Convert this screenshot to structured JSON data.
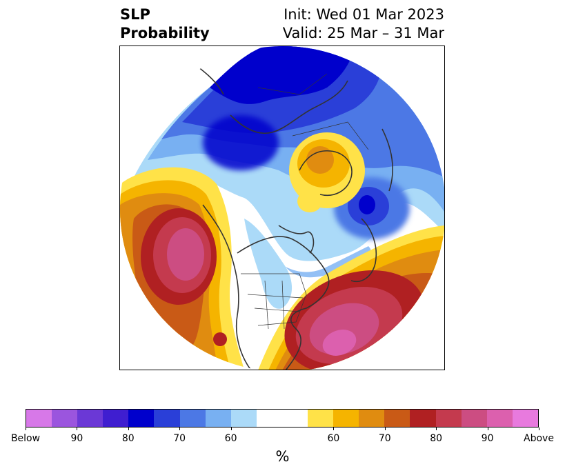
{
  "title": {
    "left_line1": "SLP",
    "left_line2": "Probability",
    "right_line1": "Init: Wed 01 Mar 2023",
    "right_line2": "Valid: 25 Mar – 31 Mar"
  },
  "colorbar": {
    "colors": [
      "#d778e8",
      "#9b55de",
      "#6b38d6",
      "#3f1ed0",
      "#0000cc",
      "#2a3fd8",
      "#4c78e5",
      "#78b0f2",
      "#abdaf8",
      "#ffffff",
      "#ffe248",
      "#f5b400",
      "#e08c10",
      "#c95a16",
      "#b02022",
      "#c43a4e",
      "#cc4d82",
      "#dc60ae",
      "#e87ade"
    ],
    "tick_labels": [
      "Below",
      "90",
      "80",
      "70",
      "60",
      "60",
      "70",
      "80",
      "90",
      "Above"
    ],
    "label": "%"
  },
  "map": {
    "projection": "north-polar-stereographic",
    "features": [
      {
        "name": "below-normal-eurasia-arctic",
        "category": "below"
      },
      {
        "name": "above-normal-north-pacific",
        "category": "above"
      },
      {
        "name": "above-normal-north-atlantic",
        "category": "above"
      },
      {
        "name": "above-normal-central-asia",
        "category": "above"
      }
    ]
  }
}
